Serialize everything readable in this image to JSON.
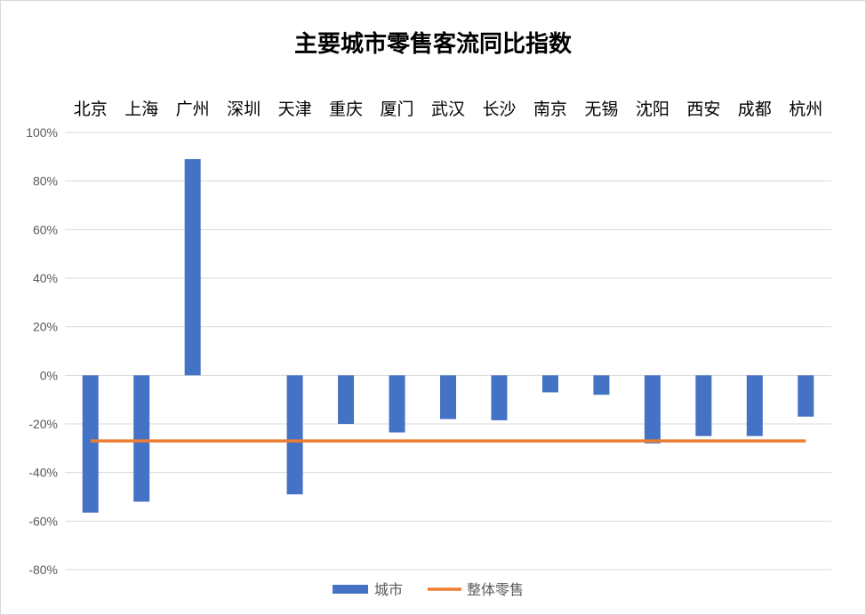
{
  "chart_data": {
    "type": "bar",
    "title": "主要城市零售客流同比指数",
    "categories": [
      "北京",
      "上海",
      "广州",
      "深圳",
      "天津",
      "重庆",
      "厦门",
      "武汉",
      "长沙",
      "南京",
      "无锡",
      "沈阳",
      "西安",
      "成都",
      "杭州"
    ],
    "series": [
      {
        "name": "城市",
        "type": "bar",
        "color": "#4472C4",
        "values": [
          -56.5,
          -52,
          89,
          null,
          -49,
          -20,
          -23.5,
          -18,
          -18.5,
          -7,
          -8,
          -28,
          -25,
          -25,
          -17
        ]
      },
      {
        "name": "整体零售",
        "type": "line",
        "color": "#ED7D31",
        "values": [
          -27,
          -27,
          -27,
          -27,
          -27,
          -27,
          -27,
          -27,
          -27,
          -27,
          -27,
          -27,
          -27,
          -27,
          -27
        ]
      }
    ],
    "ylim": [
      -80,
      100
    ],
    "yticks": [
      -80,
      -60,
      -40,
      -20,
      0,
      20,
      40,
      60,
      80,
      100
    ],
    "ytick_format": "percent",
    "xlabel": "",
    "ylabel": "",
    "grid": true,
    "category_labels_position": "top",
    "legend": "bottom"
  }
}
